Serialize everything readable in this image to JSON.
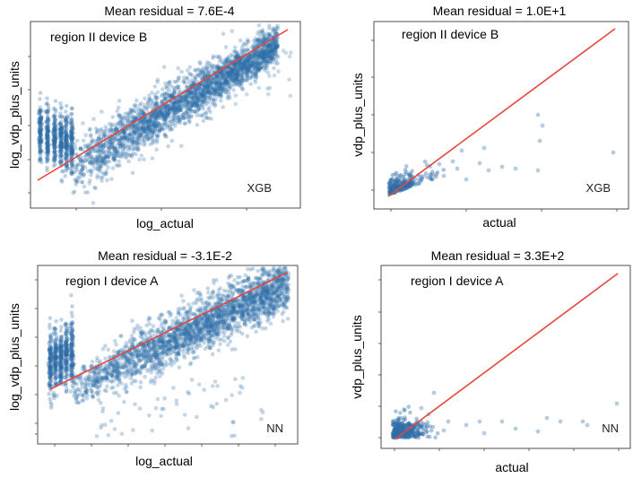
{
  "figure": {
    "panel_bg": "#ffffff",
    "point_color": "#2f6ea8",
    "line_color": "#e8453c"
  },
  "chart_data": [
    {
      "type": "scatter",
      "title": "Mean residual = 7.6E-4",
      "xlabel": "log_actual",
      "ylabel": "log_vdp_plus_units",
      "annotation": "region II device B",
      "model": "XGB",
      "scale": "log",
      "reference_line": "y = x",
      "xlim": [
        0,
        1
      ],
      "ylim": [
        0,
        1
      ]
    },
    {
      "type": "scatter",
      "title": "Mean residual = 1.0E+1",
      "xlabel": "actual",
      "ylabel": "vdp_plus_units",
      "annotation": "region II device B",
      "model": "XGB",
      "scale": "linear",
      "reference_line": "y = x",
      "xlim": [
        0,
        1
      ],
      "ylim": [
        0,
        1
      ]
    },
    {
      "type": "scatter",
      "title": "Mean residual = -3.1E-2",
      "xlabel": "log_actual",
      "ylabel": "log_vdp_plus_units",
      "annotation": "region I device A",
      "model": "NN",
      "scale": "log",
      "reference_line": "y = x",
      "xlim": [
        0,
        1
      ],
      "ylim": [
        0,
        1
      ]
    },
    {
      "type": "scatter",
      "title": "Mean residual = 3.3E+2",
      "xlabel": "actual",
      "ylabel": "vdp_plus_units",
      "annotation": "region I device A",
      "model": "NN",
      "scale": "linear",
      "reference_line": "y = x",
      "xlim": [
        0,
        1
      ],
      "ylim": [
        0,
        1
      ]
    }
  ]
}
